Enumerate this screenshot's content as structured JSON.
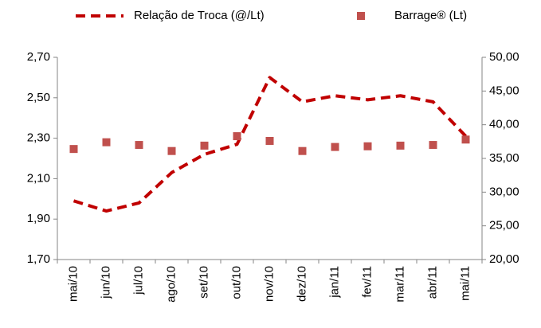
{
  "chart_data": {
    "type": "line",
    "categories": [
      "mai/10",
      "jun/10",
      "jul/10",
      "ago/10",
      "set/10",
      "out/10",
      "nov/10",
      "dez/10",
      "jan/11",
      "fev/11",
      "mar/11",
      "abr/11",
      "mai/11"
    ],
    "series": [
      {
        "name": "Relação de Troca (@/Lt)",
        "color": "#c00000",
        "style": "dashed",
        "values": [
          1.99,
          1.94,
          1.98,
          2.13,
          2.22,
          2.27,
          2.6,
          2.48,
          2.51,
          2.49,
          2.51,
          2.48,
          2.31
        ]
      },
      {
        "name": "Barrage® (Lt)",
        "color": "#c0504d",
        "style": "markers",
        "axis": "y2",
        "values": [
          36.4,
          37.4,
          37.0,
          36.1,
          36.9,
          38.3,
          37.6,
          36.1,
          36.7,
          36.8,
          36.9,
          37.0,
          37.8
        ]
      }
    ],
    "ylim": [
      1.7,
      2.7
    ],
    "yticks": [
      {
        "value": 1.7,
        "label": "1,70"
      },
      {
        "value": 1.9,
        "label": "1,90"
      },
      {
        "value": 2.1,
        "label": "2,10"
      },
      {
        "value": 2.3,
        "label": "2,30"
      },
      {
        "value": 2.5,
        "label": "2,50"
      },
      {
        "value": 2.7,
        "label": "2,70"
      }
    ],
    "y2lim": [
      20,
      50
    ],
    "y2ticks": [
      {
        "value": 20,
        "label": "20,00"
      },
      {
        "value": 25,
        "label": "25,00"
      },
      {
        "value": 30,
        "label": "30,00"
      },
      {
        "value": 35,
        "label": "35,00"
      },
      {
        "value": 40,
        "label": "40,00"
      },
      {
        "value": 45,
        "label": "45,00"
      },
      {
        "value": 50,
        "label": "50,00"
      }
    ],
    "grid": false,
    "legend": "top"
  }
}
